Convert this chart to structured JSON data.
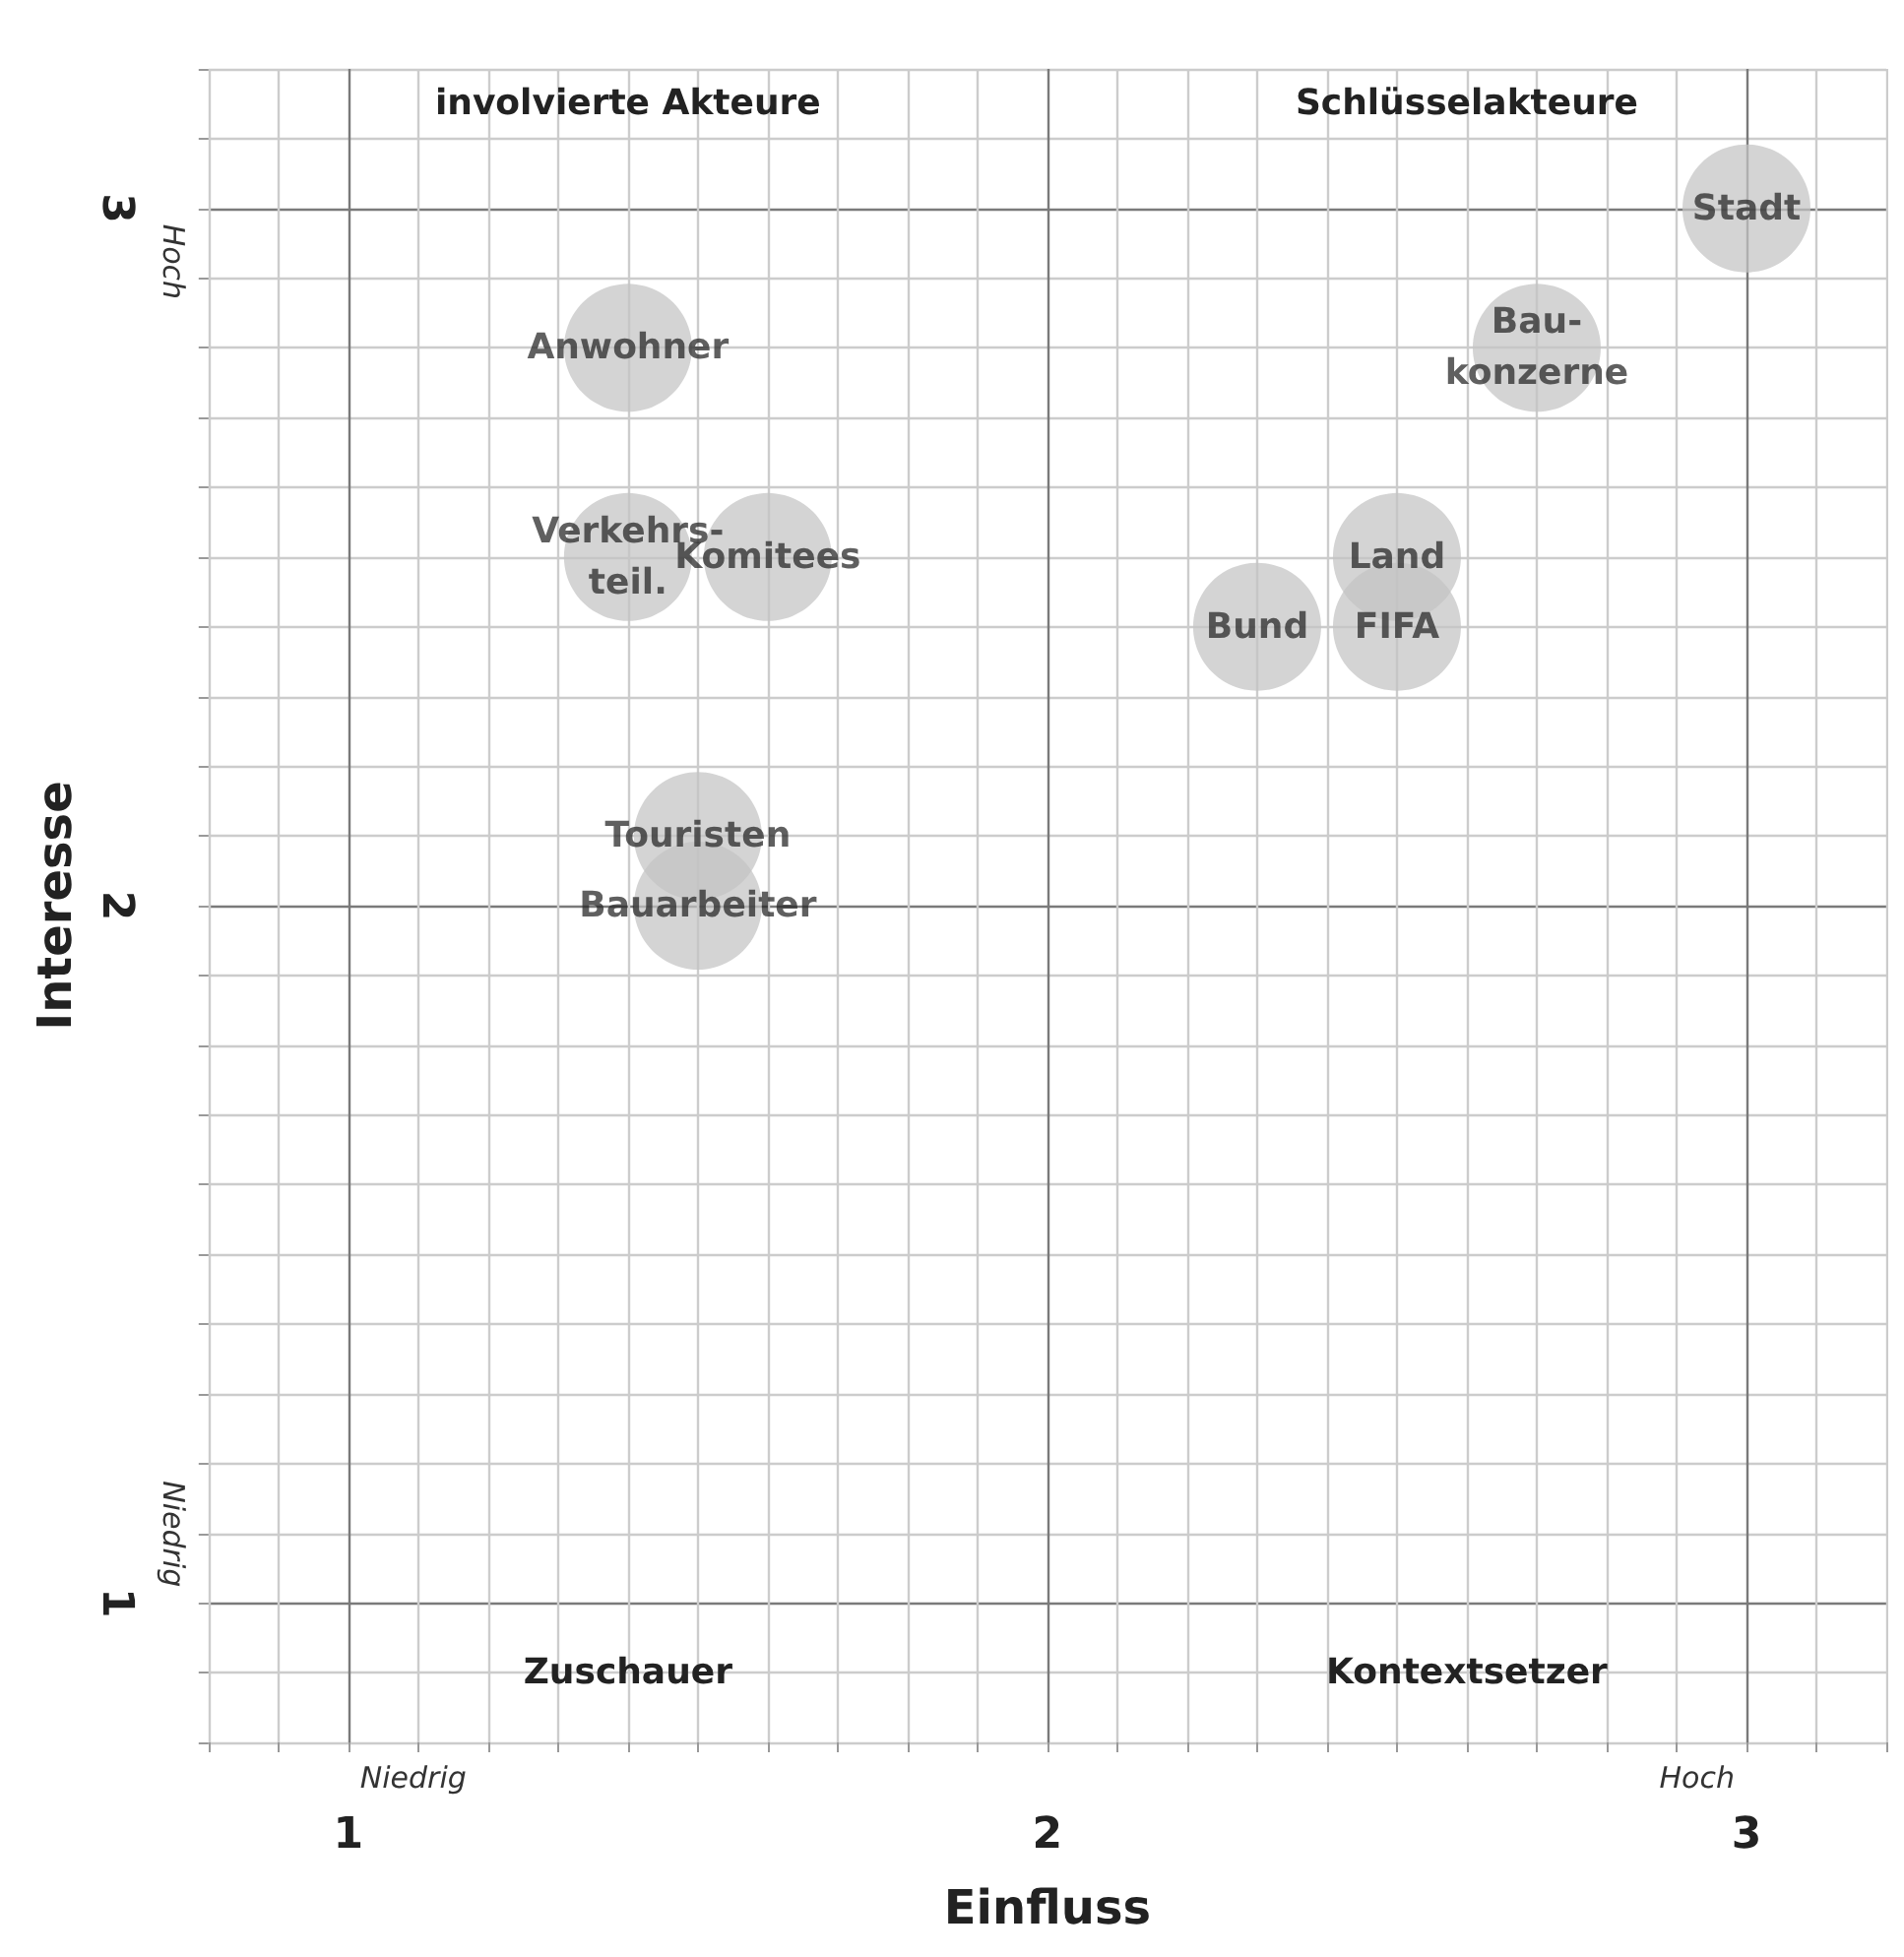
{
  "chart_data": {
    "type": "scatter",
    "xlabel": "Einfluss",
    "ylabel": "Interesse",
    "xlim": [
      0.8,
      3.2
    ],
    "ylim": [
      0.8,
      3.2
    ],
    "xticks": [
      {
        "value": 0.8,
        "label": null
      },
      {
        "value": 0.9,
        "label": null
      },
      1,
      {
        "value": 1.1,
        "label": null
      },
      {
        "value": 1.2,
        "label": null
      },
      {
        "value": 1.3,
        "label": null
      },
      {
        "value": 1.4,
        "label": null
      },
      {
        "value": 1.5,
        "label": null
      },
      {
        "value": 1.6,
        "label": null
      },
      {
        "value": 1.7,
        "label": null
      },
      {
        "value": 1.8,
        "label": null
      },
      {
        "value": 1.9,
        "label": null
      },
      2,
      {
        "value": 2.1,
        "label": null
      },
      {
        "value": 2.2,
        "label": null
      },
      {
        "value": 2.3,
        "label": null
      },
      {
        "value": 2.4,
        "label": null
      },
      {
        "value": 2.5,
        "label": null
      },
      {
        "value": 2.6,
        "label": null
      },
      {
        "value": 2.7,
        "label": null
      },
      {
        "value": 2.8,
        "label": null
      },
      {
        "value": 2.9,
        "label": null
      },
      3,
      {
        "value": 3.1,
        "label": null
      },
      {
        "value": 3.2,
        "label": null
      }
    ],
    "yticks": [
      {
        "value": 0.8,
        "label": null
      },
      {
        "value": 0.9,
        "label": null
      },
      1,
      {
        "value": 1.1,
        "label": null
      },
      {
        "value": 1.2,
        "label": null
      },
      {
        "value": 1.3,
        "label": null
      },
      {
        "value": 1.4,
        "label": null
      },
      {
        "value": 1.5,
        "label": null
      },
      {
        "value": 1.6,
        "label": null
      },
      {
        "value": 1.7,
        "label": null
      },
      {
        "value": 1.8,
        "label": null
      },
      {
        "value": 1.9,
        "label": null
      },
      2,
      {
        "value": 2.1,
        "label": null
      },
      {
        "value": 2.2,
        "label": null
      },
      {
        "value": 2.3,
        "label": null
      },
      {
        "value": 2.4,
        "label": null
      },
      {
        "value": 2.5,
        "label": null
      },
      {
        "value": 2.6,
        "label": null
      },
      {
        "value": 2.7,
        "label": null
      },
      {
        "value": 2.8,
        "label": null
      },
      {
        "value": 2.9,
        "label": null
      },
      3,
      {
        "value": 3.1,
        "label": null
      },
      {
        "value": 3.2,
        "label": null
      }
    ],
    "grid": true,
    "legend": false,
    "marker": "circle",
    "series": [
      {
        "name": "Anwohner",
        "color": "#c4c4c4",
        "x": [
          1.4
        ],
        "values": [
          2.8
        ]
      },
      {
        "name": "Verkehrs-\nteil.",
        "color": "#c4c4c4",
        "x": [
          1.4
        ],
        "values": [
          2.5
        ]
      },
      {
        "name": "Komitees",
        "color": "#c4c4c4",
        "x": [
          1.6
        ],
        "values": [
          2.5
        ]
      },
      {
        "name": "Touristen",
        "color": "#c4c4c4",
        "x": [
          1.5
        ],
        "values": [
          2.1
        ]
      },
      {
        "name": "Bauarbeiter",
        "color": "#c4c4c4",
        "x": [
          1.5
        ],
        "values": [
          2.0
        ]
      },
      {
        "name": "Stadt",
        "color": "#c4c4c4",
        "x": [
          3.0
        ],
        "values": [
          3.0
        ]
      },
      {
        "name": "Bau-\nkonzerne",
        "color": "#c4c4c4",
        "x": [
          2.7
        ],
        "values": [
          2.8
        ]
      },
      {
        "name": "Land",
        "color": "#c4c4c4",
        "x": [
          2.5
        ],
        "values": [
          2.5
        ]
      },
      {
        "name": "Bund",
        "color": "#c4c4c4",
        "x": [
          2.3
        ],
        "values": [
          2.4
        ]
      },
      {
        "name": "FIFA",
        "color": "#c4c4c4",
        "x": [
          2.5
        ],
        "values": [
          2.4
        ]
      }
    ],
    "annotations": [
      "involvierte Akteure",
      "Schlüsselakteure",
      "Zuschauer",
      "Kontextsetzer",
      "Niedrig",
      "Hoch",
      "Hoch",
      "Niedrig"
    ]
  }
}
